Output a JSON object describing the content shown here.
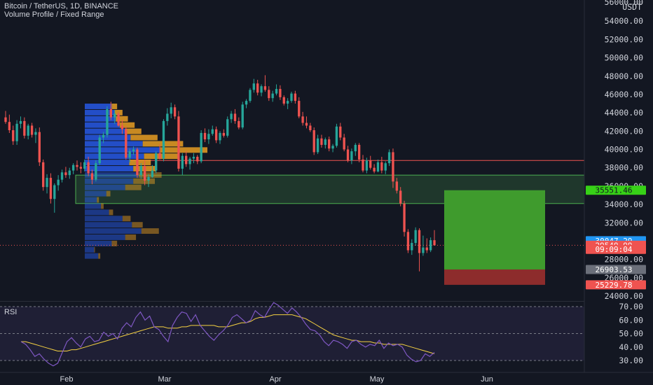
{
  "header": {
    "symbol_line": "Bitcoin / TetherUS, 1D, BINANCE",
    "indicator_line": "Volume Profile / Fixed Range"
  },
  "price_axis": {
    "currency": "USDT",
    "top_partial": "56000.00",
    "ticks": [
      "54000.00",
      "52000.00",
      "50000.00",
      "48000.00",
      "46000.00",
      "44000.00",
      "42000.00",
      "40000.00",
      "38000.00",
      "36000.00",
      "34000.00",
      "32000.00",
      "30000.00",
      "28000.00",
      "26000.00",
      "24000.00"
    ],
    "tags": [
      {
        "name": "price-tag-zone-top",
        "text": "35551.46",
        "value": 35551.46,
        "bg": "#37d117",
        "fg": "#131722"
      },
      {
        "name": "price-tag-high",
        "text": "30047.29",
        "value": 30047.29,
        "bg": "#2196f3",
        "fg": "#ffffff"
      },
      {
        "name": "price-tag-last",
        "text": "29549.99",
        "value": 29549.99,
        "bg": "#ef5350",
        "fg": "#ffffff"
      },
      {
        "name": "price-tag-countdown",
        "text": "09:09:04",
        "value": 29100,
        "bg": "#ef5350",
        "fg": "#ffffff"
      },
      {
        "name": "price-tag-entry",
        "text": "26903.53",
        "value": 26903.53,
        "bg": "#6b6f7a",
        "fg": "#ffffff"
      },
      {
        "name": "price-tag-stop",
        "text": "25229.78",
        "value": 25229.78,
        "bg": "#ef5350",
        "fg": "#ffffff"
      }
    ]
  },
  "rsi_panel": {
    "label": "RSI",
    "top_partial": "70.00",
    "ticks": [
      "60.00",
      "50.00",
      "40.00",
      "30.00"
    ]
  },
  "time_axis": {
    "labels": [
      "Feb",
      "Mar",
      "Apr",
      "May",
      "Jun"
    ]
  },
  "colors": {
    "background": "#131722",
    "up": "#26a69a",
    "down": "#ef5350",
    "vp_blue": "#2962ff",
    "vp_orange": "#f5a623",
    "zone_green": "#4caf50",
    "rsi_line": "#7e57c2",
    "rsi_ma": "#f5d142",
    "res_line": "#ef5350",
    "target_fill": "#3f9b2d",
    "stop_fill": "#8d2c2c"
  },
  "chart_data": {
    "type": "candlestick",
    "symbol": "Bitcoin / TetherUS",
    "interval": "1D",
    "exchange": "BINANCE",
    "price_range": [
      22500,
      56000
    ],
    "candles_ohlc": [
      [
        43500,
        44200,
        42800,
        43000
      ],
      [
        43000,
        43800,
        41800,
        42100
      ],
      [
        42100,
        42600,
        40500,
        40900
      ],
      [
        40900,
        43200,
        40500,
        42800
      ],
      [
        42800,
        43600,
        42300,
        43100
      ],
      [
        43100,
        43500,
        41200,
        41500
      ],
      [
        41500,
        42800,
        41100,
        42600
      ],
      [
        42600,
        42900,
        41300,
        41600
      ],
      [
        41600,
        42300,
        40700,
        41900
      ],
      [
        41900,
        42400,
        38200,
        38600
      ],
      [
        38600,
        38900,
        35500,
        35900
      ],
      [
        35900,
        37300,
        35200,
        36900
      ],
      [
        36900,
        37400,
        34100,
        34600
      ],
      [
        34600,
        36300,
        33100,
        36100
      ],
      [
        36100,
        37200,
        35500,
        36700
      ],
      [
        36700,
        37800,
        36400,
        37500
      ],
      [
        37500,
        38100,
        36900,
        37200
      ],
      [
        37200,
        38000,
        36800,
        37700
      ],
      [
        37700,
        38500,
        37300,
        38300
      ],
      [
        38300,
        38800,
        37700,
        38100
      ],
      [
        38100,
        38600,
        37400,
        37900
      ],
      [
        37900,
        38900,
        37600,
        38600
      ],
      [
        38600,
        39200,
        37100,
        37400
      ],
      [
        37400,
        37800,
        36200,
        36700
      ],
      [
        36700,
        38800,
        36500,
        38500
      ],
      [
        38500,
        41600,
        38300,
        41300
      ],
      [
        41300,
        41900,
        40700,
        41600
      ],
      [
        41600,
        44700,
        41300,
        44400
      ],
      [
        44400,
        45200,
        43200,
        43500
      ],
      [
        43500,
        44300,
        42800,
        43900
      ],
      [
        43900,
        44100,
        42500,
        42600
      ],
      [
        42600,
        43200,
        41700,
        42200
      ],
      [
        42200,
        42500,
        38900,
        39100
      ],
      [
        39100,
        40100,
        38600,
        39800
      ],
      [
        39800,
        40300,
        39400,
        40000
      ],
      [
        40000,
        40200,
        36900,
        37200
      ],
      [
        37200,
        38500,
        36800,
        38200
      ],
      [
        38200,
        38800,
        36100,
        36600
      ],
      [
        36600,
        37300,
        35900,
        37000
      ],
      [
        37000,
        38300,
        36900,
        37700
      ],
      [
        37700,
        39800,
        37400,
        39600
      ],
      [
        39600,
        40600,
        38900,
        39000
      ],
      [
        39000,
        43300,
        38700,
        43100
      ],
      [
        43100,
        44500,
        42600,
        43900
      ],
      [
        43900,
        45100,
        43400,
        44600
      ],
      [
        44600,
        44900,
        43300,
        43600
      ],
      [
        43600,
        44200,
        37600,
        37900
      ],
      [
        37900,
        39600,
        37200,
        39300
      ],
      [
        39300,
        39800,
        38100,
        38400
      ],
      [
        38400,
        39200,
        37800,
        39000
      ],
      [
        39000,
        39600,
        38500,
        39200
      ],
      [
        39200,
        39400,
        38400,
        38700
      ],
      [
        38700,
        42100,
        38500,
        41800
      ],
      [
        41800,
        42300,
        40800,
        41100
      ],
      [
        41100,
        42200,
        40600,
        41700
      ],
      [
        41700,
        42600,
        41500,
        42200
      ],
      [
        42200,
        42500,
        40700,
        41000
      ],
      [
        41000,
        42000,
        40600,
        41800
      ],
      [
        41800,
        42200,
        41300,
        41500
      ],
      [
        41500,
        43600,
        41300,
        43300
      ],
      [
        43300,
        44200,
        42900,
        43900
      ],
      [
        43900,
        44400,
        42800,
        43100
      ],
      [
        43100,
        43500,
        42200,
        42400
      ],
      [
        42400,
        45200,
        42200,
        44900
      ],
      [
        44900,
        45500,
        44500,
        45300
      ],
      [
        45300,
        46700,
        45100,
        46500
      ],
      [
        46500,
        47700,
        46200,
        47200
      ],
      [
        47200,
        47600,
        45900,
        46200
      ],
      [
        46200,
        47100,
        45800,
        46900
      ],
      [
        46900,
        48100,
        46300,
        46500
      ],
      [
        46500,
        46900,
        45300,
        45600
      ],
      [
        45600,
        46400,
        45200,
        46100
      ],
      [
        46100,
        47100,
        45900,
        46600
      ],
      [
        46600,
        47000,
        45400,
        45700
      ],
      [
        45700,
        45900,
        44800,
        45000
      ],
      [
        45000,
        45600,
        44400,
        45300
      ],
      [
        45300,
        46300,
        45100,
        46100
      ],
      [
        46100,
        46400,
        45000,
        45300
      ],
      [
        45300,
        45700,
        43400,
        43600
      ],
      [
        43600,
        44100,
        42600,
        42900
      ],
      [
        42900,
        43600,
        42300,
        42600
      ],
      [
        42600,
        42900,
        41900,
        42100
      ],
      [
        42100,
        42400,
        39400,
        39700
      ],
      [
        39700,
        41600,
        39500,
        41200
      ],
      [
        41200,
        41600,
        40200,
        40500
      ],
      [
        40500,
        41300,
        40100,
        41100
      ],
      [
        41100,
        41400,
        39800,
        40100
      ],
      [
        40100,
        40600,
        39700,
        40400
      ],
      [
        40400,
        42800,
        40200,
        42500
      ],
      [
        42500,
        42900,
        41000,
        41300
      ],
      [
        41300,
        41700,
        39800,
        40000
      ],
      [
        40000,
        40400,
        38600,
        38800
      ],
      [
        38800,
        40100,
        38400,
        39800
      ],
      [
        39800,
        40700,
        39300,
        40500
      ],
      [
        40500,
        40700,
        38600,
        38900
      ],
      [
        38900,
        39400,
        37500,
        37700
      ],
      [
        37700,
        39100,
        37400,
        38800
      ],
      [
        38800,
        39300,
        37800,
        38000
      ],
      [
        38000,
        38400,
        37400,
        37600
      ],
      [
        37600,
        38900,
        37500,
        38600
      ],
      [
        38600,
        39200,
        37400,
        37700
      ],
      [
        37700,
        38700,
        37300,
        38500
      ],
      [
        38500,
        40000,
        38200,
        39700
      ],
      [
        39700,
        40100,
        35800,
        36500
      ],
      [
        36500,
        36900,
        35200,
        35500
      ],
      [
        35500,
        35900,
        33800,
        34100
      ],
      [
        34100,
        34400,
        30500,
        31000
      ],
      [
        31000,
        31300,
        28700,
        29000
      ],
      [
        29000,
        30200,
        28500,
        29800
      ],
      [
        29800,
        31500,
        29500,
        31200
      ],
      [
        31200,
        31400,
        26700,
        28700
      ],
      [
        28700,
        30600,
        28400,
        29300
      ],
      [
        29300,
        30300,
        28700,
        29000
      ],
      [
        29000,
        30400,
        28800,
        30100
      ],
      [
        30100,
        31200,
        29500,
        29550
      ]
    ],
    "volume_profile": {
      "range": [
        28000,
        45000
      ],
      "row_buy_sell": [
        [
          100,
          15
        ],
        [
          70,
          5
        ],
        [
          200,
          40
        ],
        [
          300,
          80
        ],
        [
          420,
          130
        ],
        [
          350,
          80
        ],
        [
          280,
          60
        ],
        [
          180,
          30
        ],
        [
          120,
          20
        ],
        [
          90,
          15
        ],
        [
          160,
          30
        ],
        [
          300,
          120
        ],
        [
          360,
          160
        ],
        [
          400,
          170
        ],
        [
          360,
          170
        ],
        [
          330,
          160
        ],
        [
          440,
          250
        ],
        [
          560,
          350
        ],
        [
          430,
          300
        ],
        [
          340,
          200
        ],
        [
          300,
          120
        ],
        [
          260,
          110
        ],
        [
          230,
          90
        ],
        [
          220,
          60
        ],
        [
          200,
          40
        ]
      ]
    },
    "demand_zone": [
      34100,
      37200
    ],
    "resistance_line": 38800,
    "long_position": {
      "entry": 26903.53,
      "target": 35551.46,
      "stop": 25229.78
    },
    "rsi": {
      "range": [
        24,
        75
      ],
      "levels": [
        70,
        50,
        30
      ],
      "values": [
        44,
        42,
        38,
        33,
        35,
        31,
        28,
        26,
        28,
        36,
        44,
        47,
        43,
        40,
        46,
        48,
        44,
        45,
        51,
        48,
        50,
        46,
        54,
        58,
        55,
        62,
        66,
        60,
        63,
        55,
        53,
        48,
        44,
        56,
        62,
        66,
        65,
        59,
        64,
        56,
        52,
        48,
        45,
        49,
        52,
        56,
        62,
        64,
        61,
        58,
        60,
        67,
        64,
        62,
        68,
        73,
        71,
        68,
        65,
        69,
        66,
        62,
        57,
        53,
        52,
        49,
        44,
        41,
        45,
        44,
        42,
        39,
        44,
        45,
        42,
        40,
        42,
        41,
        45,
        39,
        43,
        41,
        42,
        40,
        34,
        31,
        29,
        30,
        35,
        33,
        36
      ],
      "ma": [
        44,
        44,
        43,
        42,
        41,
        40,
        39,
        38,
        37,
        37,
        37,
        38,
        38,
        39,
        40,
        41,
        42,
        43,
        44,
        45,
        46,
        47,
        48,
        49,
        50,
        51,
        52,
        53,
        54,
        55,
        55,
        55,
        54,
        54,
        54,
        55,
        55,
        56,
        56,
        56,
        56,
        56,
        56,
        55,
        55,
        55,
        56,
        57,
        58,
        58,
        59,
        61,
        62,
        62,
        63,
        64,
        64,
        64,
        64,
        64,
        63,
        62,
        61,
        59,
        57,
        55,
        53,
        51,
        49,
        48,
        47,
        46,
        45,
        45,
        44,
        44,
        44,
        43,
        43,
        42,
        42,
        42,
        42,
        42,
        41,
        40,
        39,
        38,
        37,
        36,
        35
      ]
    },
    "time_labels": [
      "Feb",
      "Mar",
      "Apr",
      "May",
      "Jun"
    ]
  }
}
